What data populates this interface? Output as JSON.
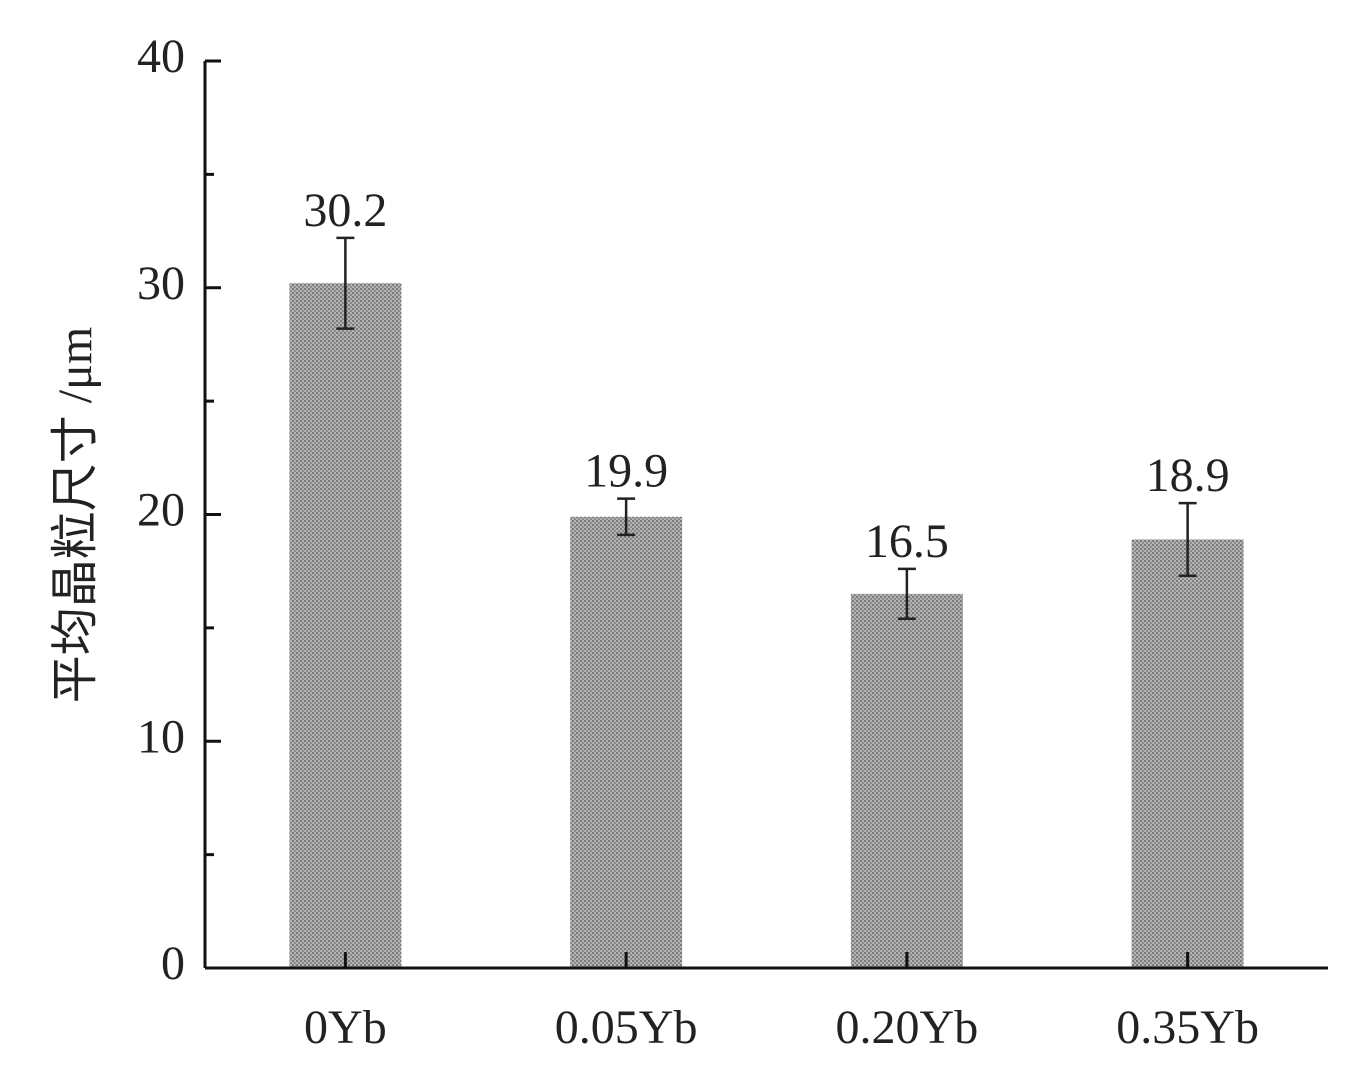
{
  "chart_data": {
    "type": "bar",
    "y_label": "平均晶粒尺寸 /μm",
    "categories": [
      "0Yb",
      "0.05Yb",
      "0.20Yb",
      "0.35Yb"
    ],
    "values": [
      30.2,
      19.9,
      16.5,
      18.9
    ],
    "errors": [
      2.0,
      0.8,
      1.1,
      1.6
    ],
    "color": "#9a9a9a",
    "ylim": [
      0,
      40
    ],
    "yticks": [
      0,
      10,
      20,
      30,
      40
    ],
    "yminorticks": [
      5,
      15,
      25,
      35
    ],
    "grid": false
  }
}
